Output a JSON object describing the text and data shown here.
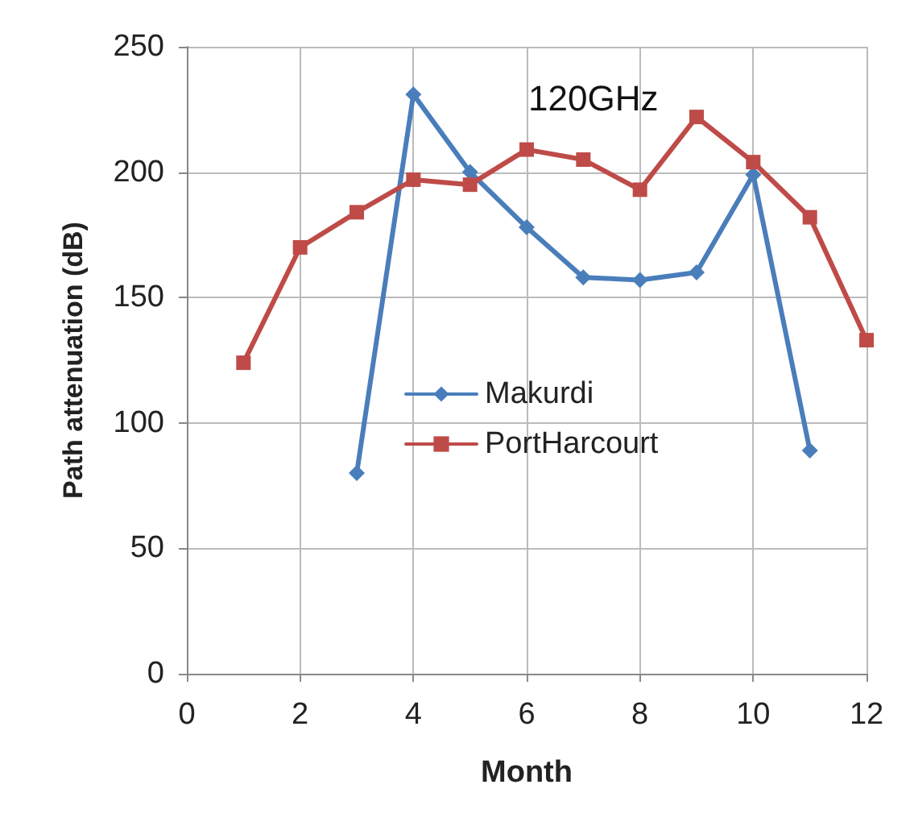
{
  "chart_data": {
    "type": "line",
    "xlabel": "Month",
    "ylabel": "Path attenuation (dB)",
    "annotations": [
      "120GHz"
    ],
    "x": [
      1,
      2,
      3,
      4,
      5,
      6,
      7,
      8,
      9,
      10,
      11,
      12
    ],
    "series": [
      {
        "name": "Makurdi",
        "color": "#4a7ebb",
        "marker": "diamond",
        "values": [
          null,
          null,
          80,
          231,
          200,
          178,
          158,
          157,
          160,
          199,
          89,
          null
        ]
      },
      {
        "name": "PortHarcourt",
        "color": "#be4b48",
        "marker": "square",
        "values": [
          124,
          170,
          184,
          197,
          195,
          209,
          205,
          193,
          222,
          204,
          182,
          133
        ]
      }
    ],
    "xlim": [
      0,
      12
    ],
    "xticks": [
      0,
      2,
      4,
      6,
      8,
      10,
      12
    ],
    "ylim": [
      0,
      250
    ],
    "yticks": [
      0,
      50,
      100,
      150,
      200,
      250
    ],
    "grid": true,
    "legend": "left",
    "line_style": "solid"
  }
}
